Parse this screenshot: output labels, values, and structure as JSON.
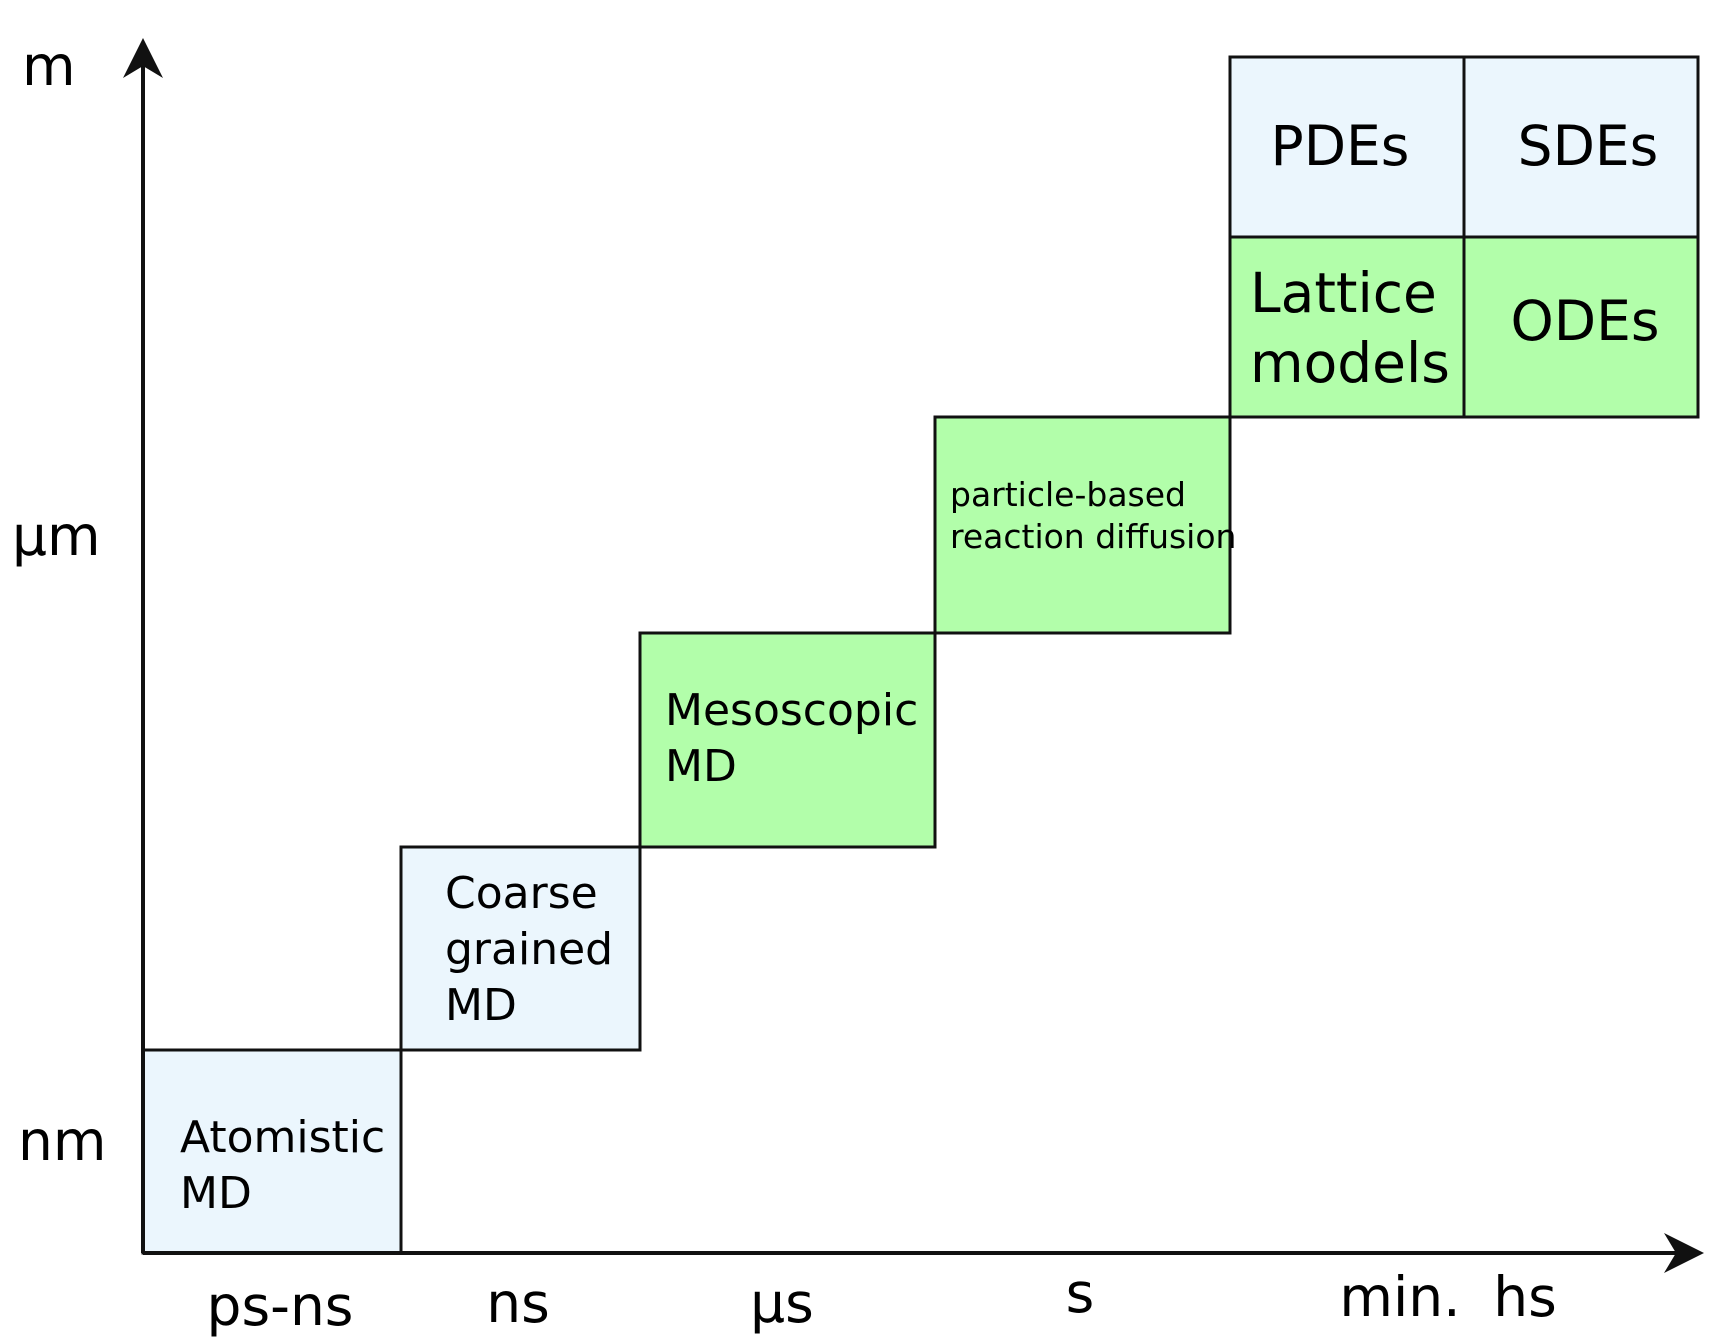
{
  "colors": {
    "light_blue": "#ebf6fd",
    "light_green": "#b2feaa",
    "stroke": "#111111"
  },
  "y_axis": {
    "labels": [
      "m",
      "µm",
      "nm"
    ]
  },
  "x_axis": {
    "labels": [
      "ps-ns",
      "ns",
      "µs",
      "s",
      "min.",
      "hs"
    ]
  },
  "boxes": {
    "atomistic": {
      "lines": [
        "Atomistic",
        "MD"
      ]
    },
    "coarse": {
      "lines": [
        "Coarse",
        "grained",
        "MD"
      ]
    },
    "mesoscopic": {
      "lines": [
        "Mesoscopic",
        "MD"
      ]
    },
    "particle": {
      "lines": [
        "particle-based",
        "reaction diffusion"
      ]
    },
    "lattice": {
      "lines": [
        "Lattice",
        "models"
      ]
    },
    "odes": {
      "lines": [
        "ODEs"
      ]
    },
    "pdes": {
      "lines": [
        "PDEs"
      ]
    },
    "sdes": {
      "lines": [
        "SDEs"
      ]
    }
  }
}
